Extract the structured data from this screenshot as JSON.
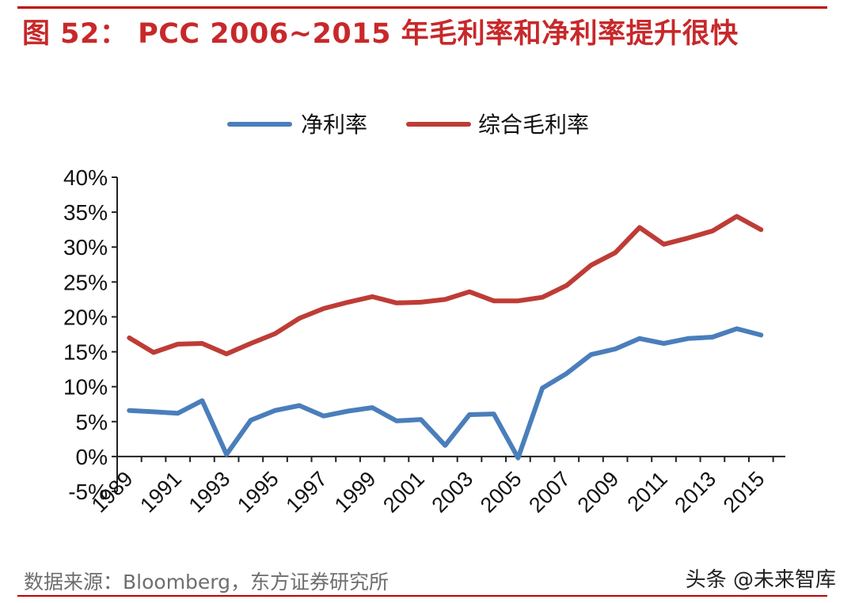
{
  "header": {
    "title": "图 52： PCC 2006~2015 年毛利率和净利率提升很快"
  },
  "footer": {
    "source": "数据来源：Bloomberg，东方证券研究所",
    "watermark": "头条 @未来智库"
  },
  "colors": {
    "accent": "#c00000",
    "net_margin": "#4a7ebb",
    "gross_margin": "#be3c36"
  },
  "chart_data": {
    "type": "line",
    "title": "",
    "xlabel": "",
    "ylabel": "",
    "ylim": [
      -5,
      40
    ],
    "y_ticks": [
      "-5%",
      "0%",
      "5%",
      "10%",
      "15%",
      "20%",
      "25%",
      "30%",
      "35%",
      "40%"
    ],
    "y_tick_values": [
      -5,
      0,
      5,
      10,
      15,
      20,
      25,
      30,
      35,
      40
    ],
    "x": [
      1989,
      1990,
      1991,
      1992,
      1993,
      1994,
      1995,
      1996,
      1997,
      1998,
      1999,
      2000,
      2001,
      2002,
      2003,
      2004,
      2005,
      2006,
      2007,
      2008,
      2009,
      2010,
      2011,
      2012,
      2013,
      2014,
      2015
    ],
    "x_tick_labels": [
      "1989",
      "1991",
      "1993",
      "1995",
      "1997",
      "1999",
      "2001",
      "2003",
      "2005",
      "2007",
      "2009",
      "2011",
      "2013",
      "2015"
    ],
    "legend_position": "top",
    "series": [
      {
        "name": "净利率",
        "color": "#4a7ebb",
        "values": [
          6.6,
          6.4,
          6.2,
          8.0,
          0.3,
          5.2,
          6.6,
          7.3,
          5.8,
          6.5,
          7.0,
          5.1,
          5.3,
          1.6,
          6.0,
          6.1,
          -0.2,
          9.8,
          11.9,
          14.6,
          15.4,
          16.9,
          16.2,
          16.9,
          17.1,
          18.3,
          17.4
        ]
      },
      {
        "name": "综合毛利率",
        "color": "#be3c36",
        "values": [
          17.0,
          14.9,
          16.1,
          16.2,
          14.7,
          16.2,
          17.6,
          19.8,
          21.2,
          22.1,
          22.9,
          22.0,
          22.1,
          22.5,
          23.6,
          22.3,
          22.3,
          22.8,
          24.5,
          27.4,
          29.2,
          32.8,
          30.4,
          31.3,
          32.3,
          34.4,
          32.5
        ]
      }
    ]
  }
}
